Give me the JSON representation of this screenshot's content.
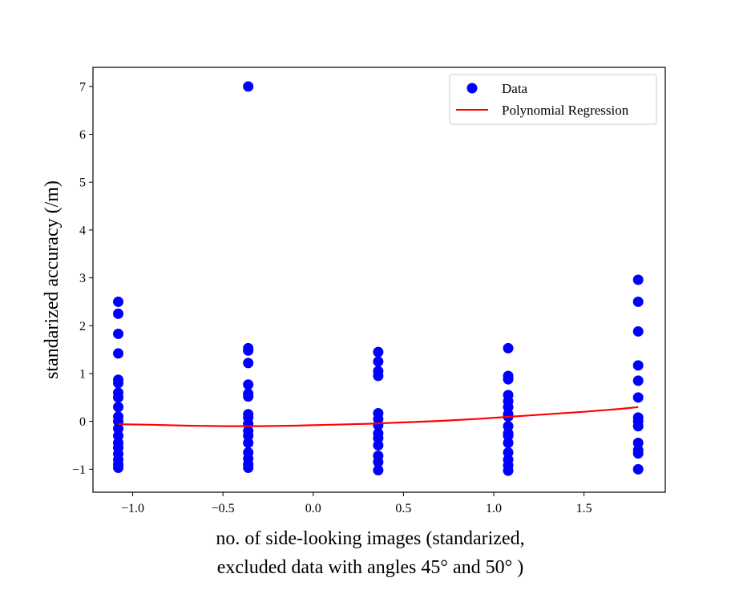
{
  "chart_data": {
    "type": "scatter",
    "xlabel_lines": [
      "no. of side-looking images (standarized,",
      "excluded data with angles 45° and 50° )"
    ],
    "ylabel": "standarized accuracy (/m)",
    "xlim": [
      -1.22,
      1.95
    ],
    "ylim": [
      -1.48,
      7.4
    ],
    "xticks": [
      -1.0,
      -0.5,
      0.0,
      0.5,
      1.0,
      1.5
    ],
    "xtick_labels": [
      "−1.0",
      "−0.5",
      "0.0",
      "0.5",
      "1.0",
      "1.5"
    ],
    "yticks": [
      -1,
      0,
      1,
      2,
      3,
      4,
      5,
      6,
      7
    ],
    "ytick_labels": [
      "−1",
      "0",
      "1",
      "2",
      "3",
      "4",
      "5",
      "6",
      "7"
    ],
    "grid": false,
    "legend_position": "top-right",
    "series": [
      {
        "name": "Data",
        "kind": "scatter",
        "color": "#0000ff",
        "points": [
          [
            -1.08,
            2.5
          ],
          [
            -1.08,
            2.25
          ],
          [
            -1.08,
            1.83
          ],
          [
            -1.08,
            1.42
          ],
          [
            -1.08,
            0.87
          ],
          [
            -1.08,
            0.8
          ],
          [
            -1.08,
            0.6
          ],
          [
            -1.08,
            0.5
          ],
          [
            -1.08,
            0.3
          ],
          [
            -1.08,
            0.1
          ],
          [
            -1.08,
            0.0
          ],
          [
            -1.08,
            -0.15
          ],
          [
            -1.08,
            -0.3
          ],
          [
            -1.08,
            -0.45
          ],
          [
            -1.08,
            -0.55
          ],
          [
            -1.08,
            -0.68
          ],
          [
            -1.08,
            -0.8
          ],
          [
            -1.08,
            -0.9
          ],
          [
            -1.08,
            -0.97
          ],
          [
            -0.36,
            7.0
          ],
          [
            -0.36,
            1.53
          ],
          [
            -0.36,
            1.48
          ],
          [
            -0.36,
            1.22
          ],
          [
            -0.36,
            0.77
          ],
          [
            -0.36,
            0.58
          ],
          [
            -0.36,
            0.52
          ],
          [
            -0.36,
            0.15
          ],
          [
            -0.36,
            0.08
          ],
          [
            -0.36,
            -0.05
          ],
          [
            -0.36,
            -0.2
          ],
          [
            -0.36,
            -0.3
          ],
          [
            -0.36,
            -0.45
          ],
          [
            -0.36,
            -0.65
          ],
          [
            -0.36,
            -0.78
          ],
          [
            -0.36,
            -0.9
          ],
          [
            -0.36,
            -0.97
          ],
          [
            0.36,
            1.45
          ],
          [
            0.36,
            1.25
          ],
          [
            0.36,
            1.05
          ],
          [
            0.36,
            0.95
          ],
          [
            0.36,
            0.17
          ],
          [
            0.36,
            0.05
          ],
          [
            0.36,
            -0.08
          ],
          [
            0.36,
            -0.25
          ],
          [
            0.36,
            -0.35
          ],
          [
            0.36,
            -0.5
          ],
          [
            0.36,
            -0.72
          ],
          [
            0.36,
            -0.85
          ],
          [
            0.36,
            -1.02
          ],
          [
            1.08,
            1.53
          ],
          [
            1.08,
            0.95
          ],
          [
            1.08,
            0.88
          ],
          [
            1.08,
            0.55
          ],
          [
            1.08,
            0.42
          ],
          [
            1.08,
            0.3
          ],
          [
            1.08,
            0.15
          ],
          [
            1.08,
            0.1
          ],
          [
            1.08,
            -0.1
          ],
          [
            1.08,
            -0.25
          ],
          [
            1.08,
            -0.3
          ],
          [
            1.08,
            -0.45
          ],
          [
            1.08,
            -0.65
          ],
          [
            1.08,
            -0.8
          ],
          [
            1.08,
            -0.92
          ],
          [
            1.08,
            -1.03
          ],
          [
            1.8,
            2.96
          ],
          [
            1.8,
            2.5
          ],
          [
            1.8,
            1.88
          ],
          [
            1.8,
            1.17
          ],
          [
            1.8,
            0.85
          ],
          [
            1.8,
            0.5
          ],
          [
            1.8,
            0.08
          ],
          [
            1.8,
            0.0
          ],
          [
            1.8,
            -0.1
          ],
          [
            1.8,
            -0.45
          ],
          [
            1.8,
            -0.6
          ],
          [
            1.8,
            -0.67
          ],
          [
            1.8,
            -1.0
          ]
        ]
      },
      {
        "name": "Polynomial Regression",
        "kind": "line",
        "color": "#ff0000",
        "points": [
          [
            -1.08,
            -0.06
          ],
          [
            -0.9,
            -0.07
          ],
          [
            -0.7,
            -0.09
          ],
          [
            -0.5,
            -0.1
          ],
          [
            -0.3,
            -0.1
          ],
          [
            -0.1,
            -0.09
          ],
          [
            0.1,
            -0.07
          ],
          [
            0.3,
            -0.05
          ],
          [
            0.5,
            -0.02
          ],
          [
            0.7,
            0.01
          ],
          [
            0.9,
            0.05
          ],
          [
            1.1,
            0.1
          ],
          [
            1.3,
            0.15
          ],
          [
            1.5,
            0.2
          ],
          [
            1.7,
            0.26
          ],
          [
            1.8,
            0.3
          ]
        ]
      }
    ]
  }
}
